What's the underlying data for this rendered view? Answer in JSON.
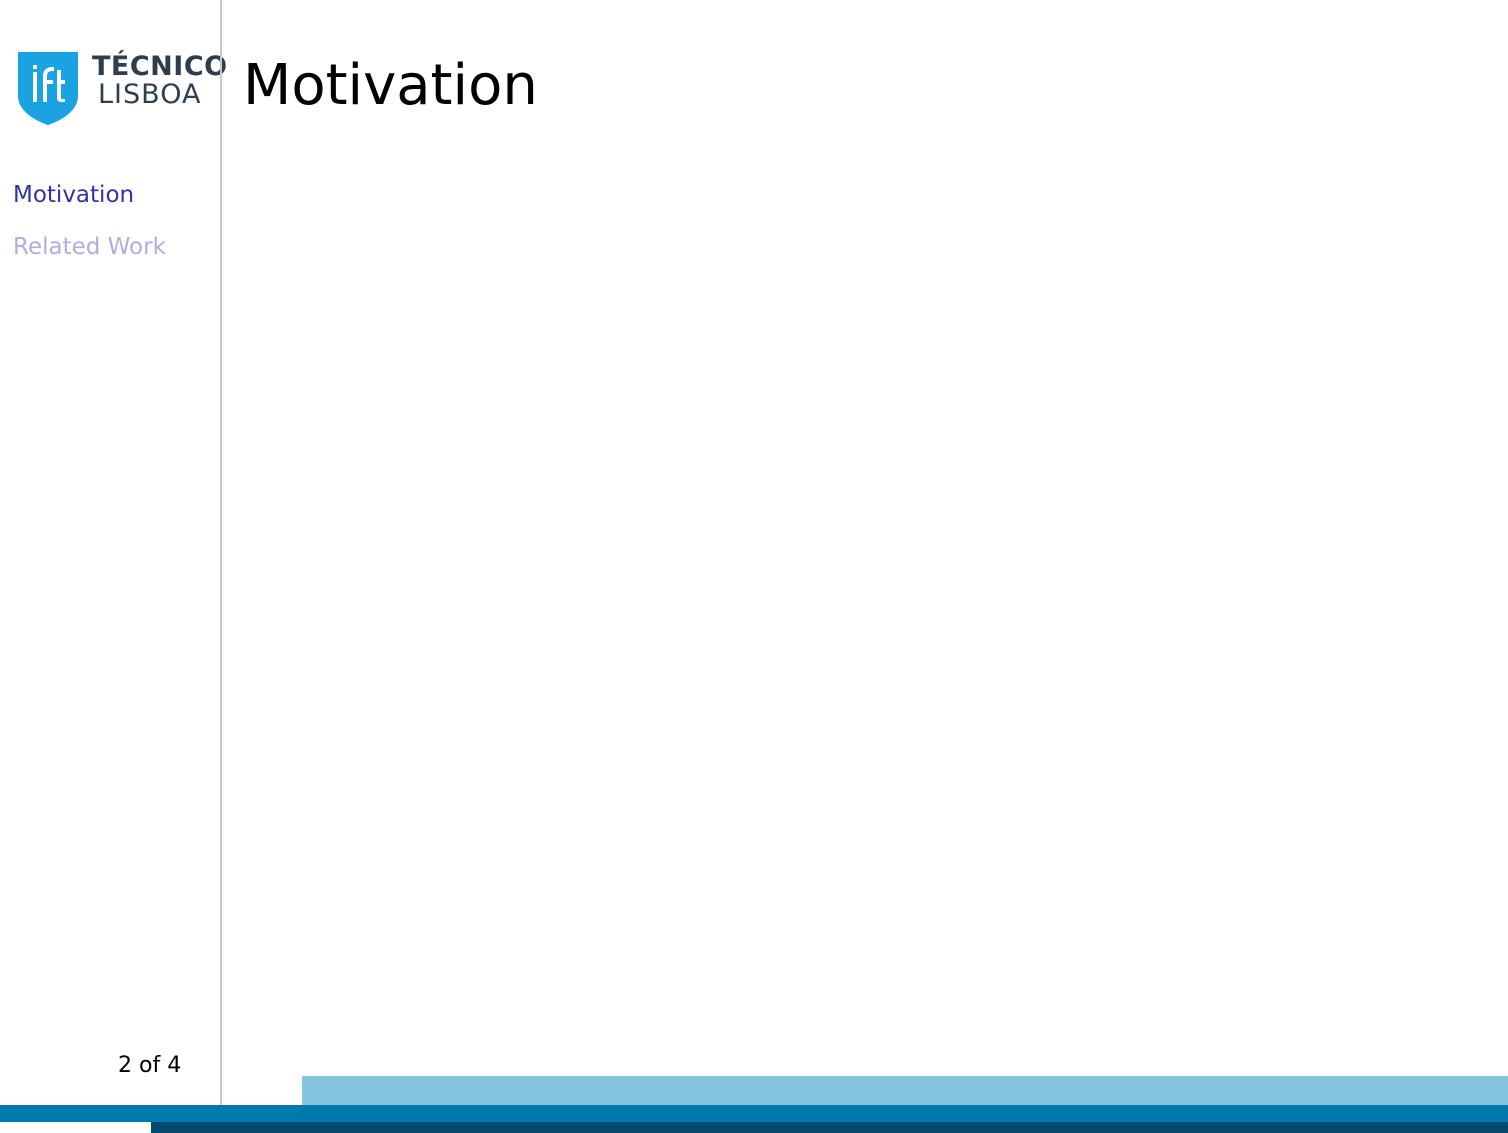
{
  "slide": {
    "title": "Motivation"
  },
  "logo": {
    "line1": "TÉCNICO",
    "line2": "LISBOA",
    "shield_color": "#1aa3e0",
    "text_color": "#2e3e4c"
  },
  "sidebar": {
    "items": [
      {
        "label": "Motivation",
        "state": "active"
      },
      {
        "label": "Related Work",
        "state": "inactive"
      }
    ]
  },
  "footer": {
    "page_indicator": "2 of 4"
  },
  "colors": {
    "nav_active": "#3333a6",
    "nav_inactive": "#aeaee0",
    "band_light": "#84c5e0",
    "band_mid": "#0079ad",
    "band_dark": "#004a6e",
    "divider": "#c8c8c8"
  }
}
